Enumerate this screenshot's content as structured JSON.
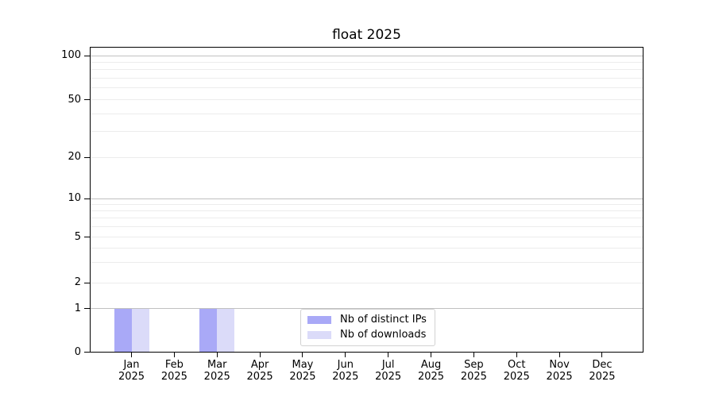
{
  "title": "float 2025",
  "colors": {
    "distinct_ips": "#a9a9f7",
    "downloads": "#dbdbf9",
    "grid_major": "#c0c0c0",
    "grid_minor": "#ececec",
    "axis": "#000000",
    "background": "#ffffff",
    "legend_border": "#d2d2d2"
  },
  "legend": {
    "items": [
      {
        "label": "Nb of distinct IPs",
        "color": "#a9a9f7"
      },
      {
        "label": "Nb of downloads",
        "color": "#dbdbf9"
      }
    ]
  },
  "x_axis": {
    "months": [
      "Jan",
      "Feb",
      "Mar",
      "Apr",
      "May",
      "Jun",
      "Jul",
      "Aug",
      "Sep",
      "Oct",
      "Nov",
      "Dec"
    ],
    "year": "2025"
  },
  "y_axis": {
    "tick_labels": [
      "0",
      "1",
      "2",
      "5",
      "10",
      "20",
      "50",
      "100"
    ]
  },
  "chart_data": {
    "type": "bar",
    "title": "float 2025",
    "categories": [
      "Jan 2025",
      "Feb 2025",
      "Mar 2025",
      "Apr 2025",
      "May 2025",
      "Jun 2025",
      "Jul 2025",
      "Aug 2025",
      "Sep 2025",
      "Oct 2025",
      "Nov 2025",
      "Dec 2025"
    ],
    "series": [
      {
        "name": "Nb of distinct IPs",
        "color": "#a9a9f7",
        "values": [
          1,
          0,
          1,
          0,
          0,
          0,
          0,
          0,
          0,
          0,
          0,
          0
        ]
      },
      {
        "name": "Nb of downloads",
        "color": "#dbdbf9",
        "values": [
          1,
          0,
          1,
          0,
          0,
          0,
          0,
          0,
          0,
          0,
          0,
          0
        ]
      }
    ],
    "y_scale": "log (linear below 1)",
    "y_major_ticks": [
      0,
      1,
      2,
      5,
      10,
      20,
      50,
      100
    ],
    "y_minor_ticks": [
      3,
      4,
      6,
      7,
      8,
      9,
      30,
      40,
      60,
      70,
      80,
      90
    ],
    "ylim": [
      0,
      115
    ],
    "grid": true,
    "legend_position": "lower center inside plot",
    "bar_values_note": "both series equal 1 in Jan 2025 and Mar 2025, zero elsewhere"
  }
}
